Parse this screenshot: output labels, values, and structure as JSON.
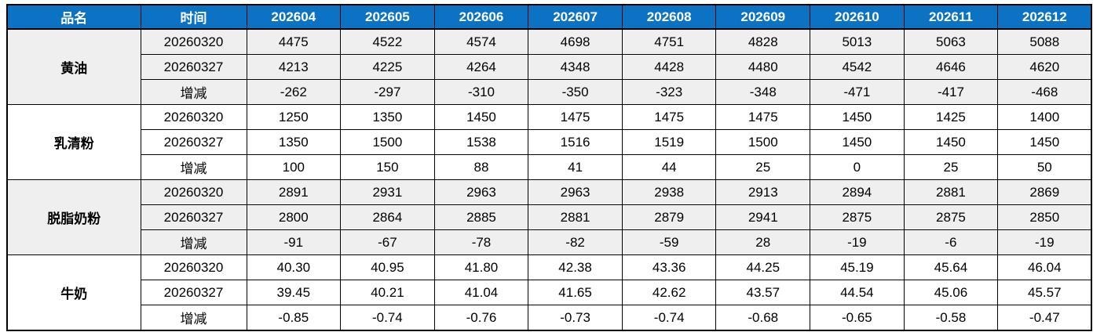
{
  "colors": {
    "header_bg": "#0c72c4",
    "header_text": "#ffffff",
    "band_gray": "#efefef",
    "band_white": "#ffffff",
    "grid": "#000000",
    "increase_red": "#c8112e",
    "decrease_green": "#00b050"
  },
  "chart_data": {
    "type": "table",
    "header": {
      "product_label": "品名",
      "time_label": "时间",
      "months": [
        "202604",
        "202605",
        "202606",
        "202607",
        "202608",
        "202609",
        "202610",
        "202611",
        "202612"
      ]
    },
    "groups": [
      {
        "name": "黄油",
        "band": "band-gray",
        "rows": [
          {
            "label": "20260320",
            "values": [
              "4475",
              "4522",
              "4574",
              "4698",
              "4751",
              "4828",
              "5013",
              "5063",
              "5088"
            ],
            "colors": [
              "c-black",
              "c-black",
              "c-black",
              "c-black",
              "c-black",
              "c-black",
              "c-black",
              "c-black",
              "c-black"
            ]
          },
          {
            "label": "20260327",
            "values": [
              "4213",
              "4225",
              "4264",
              "4348",
              "4428",
              "4480",
              "4542",
              "4646",
              "4620"
            ],
            "colors": [
              "c-black",
              "c-black",
              "c-black",
              "c-black",
              "c-black",
              "c-black",
              "c-black",
              "c-black",
              "c-black"
            ]
          },
          {
            "label": "增减",
            "values": [
              "-262",
              "-297",
              "-310",
              "-350",
              "-323",
              "-348",
              "-471",
              "-417",
              "-468"
            ],
            "colors": [
              "c-green",
              "c-green",
              "c-green",
              "c-green",
              "c-green",
              "c-green",
              "c-green",
              "c-green",
              "c-green"
            ]
          }
        ]
      },
      {
        "name": "乳清粉",
        "band": "band-white",
        "rows": [
          {
            "label": "20260320",
            "values": [
              "1250",
              "1350",
              "1450",
              "1475",
              "1475",
              "1475",
              "1450",
              "1425",
              "1400"
            ],
            "colors": [
              "c-black",
              "c-black",
              "c-black",
              "c-black",
              "c-black",
              "c-black",
              "c-black",
              "c-black",
              "c-black"
            ]
          },
          {
            "label": "20260327",
            "values": [
              "1350",
              "1500",
              "1538",
              "1516",
              "1519",
              "1500",
              "1450",
              "1450",
              "1450"
            ],
            "colors": [
              "c-black",
              "c-black",
              "c-black",
              "c-black",
              "c-black",
              "c-black",
              "c-black",
              "c-black",
              "c-black"
            ]
          },
          {
            "label": "增减",
            "values": [
              "100",
              "150",
              "88",
              "41",
              "44",
              "25",
              "0",
              "25",
              "50"
            ],
            "colors": [
              "c-red",
              "c-red",
              "c-red",
              "c-red",
              "c-red",
              "c-red",
              "c-black",
              "c-red",
              "c-red"
            ]
          }
        ]
      },
      {
        "name": "脱脂奶粉",
        "band": "band-gray",
        "rows": [
          {
            "label": "20260320",
            "values": [
              "2891",
              "2931",
              "2963",
              "2963",
              "2938",
              "2913",
              "2894",
              "2881",
              "2869"
            ],
            "colors": [
              "c-black",
              "c-black",
              "c-black",
              "c-black",
              "c-black",
              "c-black",
              "c-black",
              "c-black",
              "c-black"
            ]
          },
          {
            "label": "20260327",
            "values": [
              "2800",
              "2864",
              "2885",
              "2881",
              "2879",
              "2941",
              "2875",
              "2875",
              "2850"
            ],
            "colors": [
              "c-black",
              "c-black",
              "c-black",
              "c-black",
              "c-black",
              "c-black",
              "c-black",
              "c-black",
              "c-black"
            ]
          },
          {
            "label": "增减",
            "values": [
              "-91",
              "-67",
              "-78",
              "-82",
              "-59",
              "28",
              "-19",
              "-6",
              "-19"
            ],
            "colors": [
              "c-green",
              "c-green",
              "c-green",
              "c-green",
              "c-green",
              "c-black",
              "c-green",
              "c-green",
              "c-green"
            ]
          }
        ]
      },
      {
        "name": "牛奶",
        "band": "band-white",
        "rows": [
          {
            "label": "20260320",
            "values": [
              "40.30",
              "40.95",
              "41.80",
              "42.38",
              "43.36",
              "44.25",
              "45.19",
              "45.64",
              "46.04"
            ],
            "colors": [
              "c-black",
              "c-black",
              "c-black",
              "c-black",
              "c-black",
              "c-black",
              "c-black",
              "c-black",
              "c-black"
            ]
          },
          {
            "label": "20260327",
            "values": [
              "39.45",
              "40.21",
              "41.04",
              "41.65",
              "42.62",
              "43.57",
              "44.54",
              "45.06",
              "45.57"
            ],
            "colors": [
              "c-black",
              "c-black",
              "c-black",
              "c-black",
              "c-black",
              "c-black",
              "c-black",
              "c-black",
              "c-black"
            ]
          },
          {
            "label": "增减",
            "values": [
              "-0.85",
              "-0.74",
              "-0.76",
              "-0.73",
              "-0.74",
              "-0.68",
              "-0.65",
              "-0.58",
              "-0.47"
            ],
            "colors": [
              "c-green",
              "c-green",
              "c-green",
              "c-green",
              "c-green",
              "c-green",
              "c-green",
              "c-green",
              "c-green"
            ]
          }
        ]
      }
    ]
  }
}
